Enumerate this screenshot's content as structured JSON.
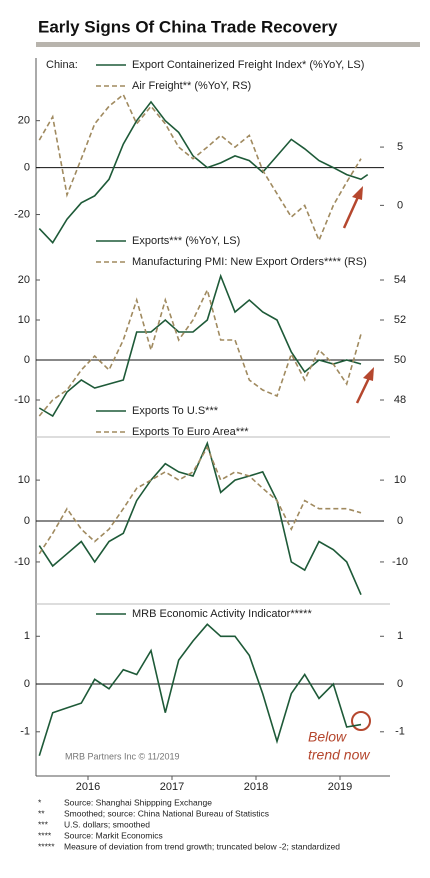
{
  "title": "Early Signs Of China Trade Recovery",
  "chart_data": [
    {
      "type": "line",
      "legend_title": "China:",
      "x": [
        2015.92,
        2016.08,
        2016.25,
        2016.42,
        2016.58,
        2016.75,
        2016.92,
        2017.08,
        2017.25,
        2017.42,
        2017.58,
        2017.75,
        2017.92,
        2018.08,
        2018.25,
        2018.42,
        2018.58,
        2018.75,
        2018.92,
        2019.08,
        2019.25,
        2019.42,
        2019.58,
        2019.75,
        2019.83
      ],
      "xlim": [
        2015.9,
        2020.0
      ],
      "ylim": [
        -30,
        45
      ],
      "yticks": [
        -20,
        0,
        20
      ],
      "y2lim": [
        -2.8,
        12.3
      ],
      "y2ticks": [
        0,
        5
      ],
      "zero_line": true,
      "series": [
        {
          "name": "Export Containerized Freight Index* (%YoY, LS)",
          "color": "#1e5a38",
          "dashed": false,
          "axis": "y",
          "values": [
            -26,
            -32,
            -22,
            -15,
            -12,
            -5,
            10,
            20,
            28,
            20,
            15,
            5,
            0,
            2,
            5,
            3,
            -2,
            5,
            12,
            8,
            3,
            0,
            -3,
            -5,
            -3
          ]
        },
        {
          "name": "Air Freight** (%YoY, RS)",
          "color": "#a08a5f",
          "dashed": true,
          "axis": "y2",
          "values": [
            5.6,
            7.6,
            0.9,
            4,
            7,
            8.5,
            9.5,
            7,
            8.5,
            7,
            5,
            4,
            5,
            6,
            5,
            6,
            3,
            1,
            -1,
            0,
            -3,
            0,
            2,
            4,
            null
          ]
        }
      ]
    },
    {
      "type": "line",
      "x": [
        2015.92,
        2016.08,
        2016.25,
        2016.42,
        2016.58,
        2016.75,
        2016.92,
        2017.08,
        2017.25,
        2017.42,
        2017.58,
        2017.75,
        2017.92,
        2018.08,
        2018.25,
        2018.42,
        2018.58,
        2018.75,
        2018.92,
        2019.08,
        2019.25,
        2019.42,
        2019.58,
        2019.75,
        2019.83
      ],
      "xlim": [
        2015.9,
        2020.0
      ],
      "ylim": [
        -15,
        24.5
      ],
      "yticks": [
        -10,
        0,
        10,
        20
      ],
      "y2lim": [
        47,
        54.9
      ],
      "y2ticks": [
        48,
        50,
        52,
        54
      ],
      "zero_line": true,
      "series": [
        {
          "name": "Exports*** (%YoY, LS)",
          "color": "#1e5a38",
          "dashed": false,
          "axis": "y",
          "values": [
            -12,
            -14,
            -8,
            -5,
            -7,
            -6,
            -5,
            7,
            7,
            10,
            7,
            7,
            10,
            21,
            12,
            15,
            12,
            10,
            2,
            -3,
            0,
            -1,
            0,
            -1,
            null
          ]
        },
        {
          "name": "Manufacturing PMI: New Export Orders**** (RS)",
          "color": "#a08a5f",
          "dashed": true,
          "axis": "y2",
          "values": [
            47.2,
            48,
            48.5,
            49.5,
            50.2,
            49.5,
            51,
            53,
            50.5,
            53,
            51,
            52,
            53.5,
            51,
            51,
            49,
            48.5,
            48.2,
            50.3,
            49,
            50.5,
            49.8,
            48.8,
            51.3,
            null
          ]
        }
      ]
    },
    {
      "type": "line",
      "x": [
        2015.92,
        2016.08,
        2016.25,
        2016.42,
        2016.58,
        2016.75,
        2016.92,
        2017.08,
        2017.25,
        2017.42,
        2017.58,
        2017.75,
        2017.92,
        2018.08,
        2018.25,
        2018.42,
        2018.58,
        2018.75,
        2018.92,
        2019.08,
        2019.25,
        2019.42,
        2019.58,
        2019.75,
        2019.83
      ],
      "xlim": [
        2015.9,
        2020.0
      ],
      "ylim": [
        -19.3,
        19.8
      ],
      "yticks": [
        -10,
        0,
        10
      ],
      "y2lim": [
        -19.3,
        19.8
      ],
      "y2ticks": [
        -10,
        0,
        10
      ],
      "zero_line": true,
      "series": [
        {
          "name": "Exports To U.S***",
          "color": "#1e5a38",
          "dashed": false,
          "axis": "y",
          "values": [
            -6,
            -11,
            -8,
            -5,
            -10,
            -5,
            -3,
            5,
            10,
            14,
            12,
            11,
            19,
            7,
            10,
            11,
            12,
            5,
            -10,
            -12,
            -5,
            -7,
            -10,
            -18,
            null
          ]
        },
        {
          "name": "Exports To Euro Area***",
          "color": "#a08a5f",
          "dashed": true,
          "axis": "y2",
          "values": [
            -8,
            -3,
            3,
            -2,
            -5,
            -2,
            3,
            8,
            10,
            12,
            10,
            12,
            18,
            10,
            12,
            11,
            8,
            5,
            -2,
            5,
            3,
            3,
            3,
            2,
            null
          ]
        }
      ]
    },
    {
      "type": "line",
      "x": [
        2015.92,
        2016.08,
        2016.25,
        2016.42,
        2016.58,
        2016.75,
        2016.92,
        2017.08,
        2017.25,
        2017.42,
        2017.58,
        2017.75,
        2017.92,
        2018.08,
        2018.25,
        2018.42,
        2018.58,
        2018.75,
        2018.92,
        2019.08,
        2019.25,
        2019.42,
        2019.58,
        2019.75,
        2019.83
      ],
      "xlim": [
        2015.9,
        2020.0
      ],
      "ylim": [
        -1.8,
        1.55
      ],
      "yticks": [
        -1,
        0,
        1
      ],
      "y2lim": [
        -1.8,
        1.55
      ],
      "y2ticks": [
        -1,
        0,
        1
      ],
      "zero_line": true,
      "xticks": [
        {
          "value": 2016.5,
          "label": "2016"
        },
        {
          "value": 2017.5,
          "label": "2017"
        },
        {
          "value": 2018.5,
          "label": "2018"
        },
        {
          "value": 2019.5,
          "label": "2019"
        }
      ],
      "annotations": [
        "MRB Partners Inc © 11/2019",
        "Below",
        "trend now"
      ],
      "series": [
        {
          "name": "MRB Economic Activity Indicator*****",
          "color": "#1e5a38",
          "dashed": false,
          "axis": "y",
          "values": [
            -1.5,
            -0.6,
            -0.5,
            -0.4,
            0.1,
            -0.1,
            0.3,
            0.2,
            0.7,
            -0.6,
            0.5,
            0.9,
            1.25,
            1.0,
            1.0,
            0.6,
            -0.2,
            -1.2,
            -0.2,
            0.2,
            -0.3,
            0.0,
            -0.9,
            -0.85,
            null
          ]
        }
      ]
    }
  ],
  "footnotes": [
    {
      "marker": "*",
      "text": "Source: Shanghai Shippping Exchange"
    },
    {
      "marker": "**",
      "text": "Smoothed; source: China National Bureau of Statistics"
    },
    {
      "marker": "***",
      "text": "U.S. dollars; smoothed"
    },
    {
      "marker": "****",
      "text": "Source: Markit Economics"
    },
    {
      "marker": "*****",
      "text": "Measure of deviation from trend growth; truncated below -2; standardized"
    }
  ]
}
